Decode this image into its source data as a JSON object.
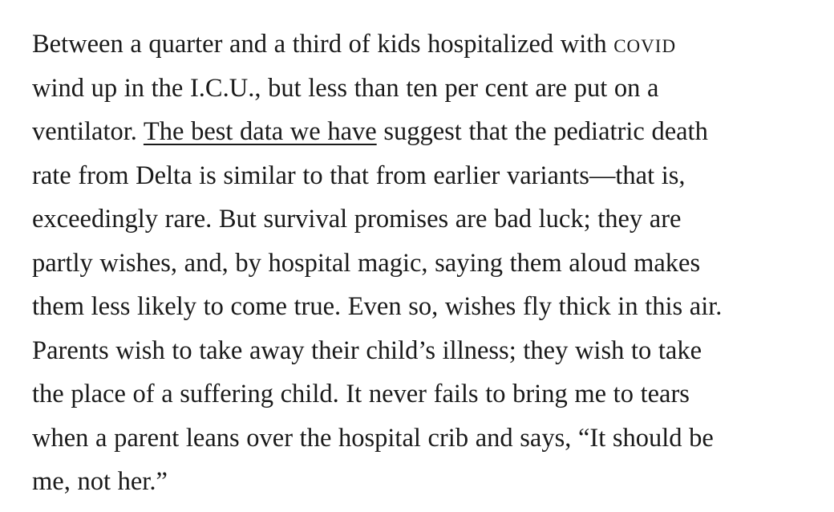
{
  "article": {
    "lines": {
      "l1_before": "Between a quarter and a third of kids hospitalized with ",
      "l1_smallcaps": "covid",
      "l2": "wind up in the I.C.U., but less than ten per cent are put on a",
      "l3_before": "ventilator. ",
      "l3_link": "The best data we have",
      "l3_after": " suggest that the pediatric death",
      "l4": "rate from Delta is similar to that from earlier variants—that is,",
      "l5": "exceedingly rare. But survival promises are bad luck; they are",
      "l6": "partly wishes, and, by hospital magic, saying them aloud makes",
      "l7": "them less likely to come true. Even so, wishes fly thick in this air.",
      "l8": "Parents wish to take away their child’s illness; they wish to take",
      "l9": "the place of a suffering child. It never fails to bring me to tears",
      "l10": "when a parent leans over the hospital crib and says, “It should be",
      "l11": "me, not her.”"
    }
  }
}
